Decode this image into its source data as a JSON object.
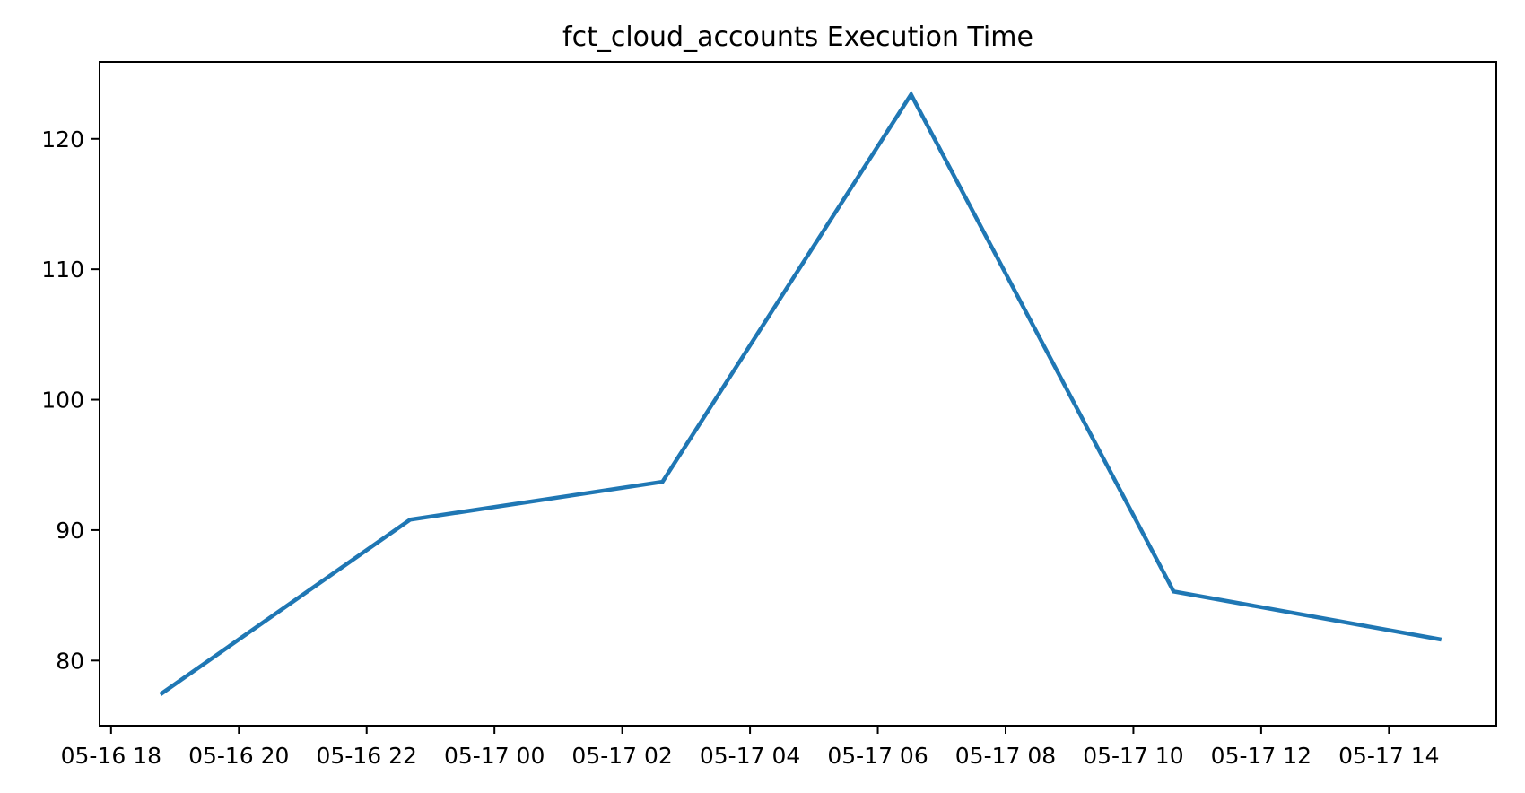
{
  "chart_data": {
    "type": "line",
    "title": "fct_cloud_accounts Execution Time",
    "xlabel": "",
    "ylabel": "",
    "grid": false,
    "legend": null,
    "line_color": "#1f77b4",
    "background_color": "#ffffff",
    "x_axis": {
      "tick_labels": [
        "05-16 18",
        "05-16 20",
        "05-16 22",
        "05-17 00",
        "05-17 02",
        "05-17 04",
        "05-17 06",
        "05-17 08",
        "05-17 10",
        "05-17 12",
        "05-17 14"
      ],
      "tick_hours_from_first": [
        0,
        2,
        4,
        6,
        8,
        10,
        12,
        14,
        16,
        18,
        20
      ],
      "range_hours_from_first": [
        -0.18,
        21.68
      ]
    },
    "y_axis": {
      "tick_labels": [
        "80",
        "90",
        "100",
        "110",
        "120"
      ],
      "tick_values": [
        80,
        90,
        100,
        110,
        120
      ],
      "range": [
        75.0,
        125.9
      ]
    },
    "series": [
      {
        "name": "execution_time",
        "points": [
          {
            "time": "05-16 18:46",
            "hours_from_first_tick": 0.77,
            "value": 77.4
          },
          {
            "time": "05-16 22:41",
            "hours_from_first_tick": 4.68,
            "value": 90.8
          },
          {
            "time": "05-17 02:38",
            "hours_from_first_tick": 8.63,
            "value": 93.7
          },
          {
            "time": "05-17 06:31",
            "hours_from_first_tick": 12.52,
            "value": 123.4
          },
          {
            "time": "05-17 10:38",
            "hours_from_first_tick": 16.63,
            "value": 85.3
          },
          {
            "time": "05-17 14:49",
            "hours_from_first_tick": 20.82,
            "value": 81.6
          }
        ]
      }
    ]
  }
}
